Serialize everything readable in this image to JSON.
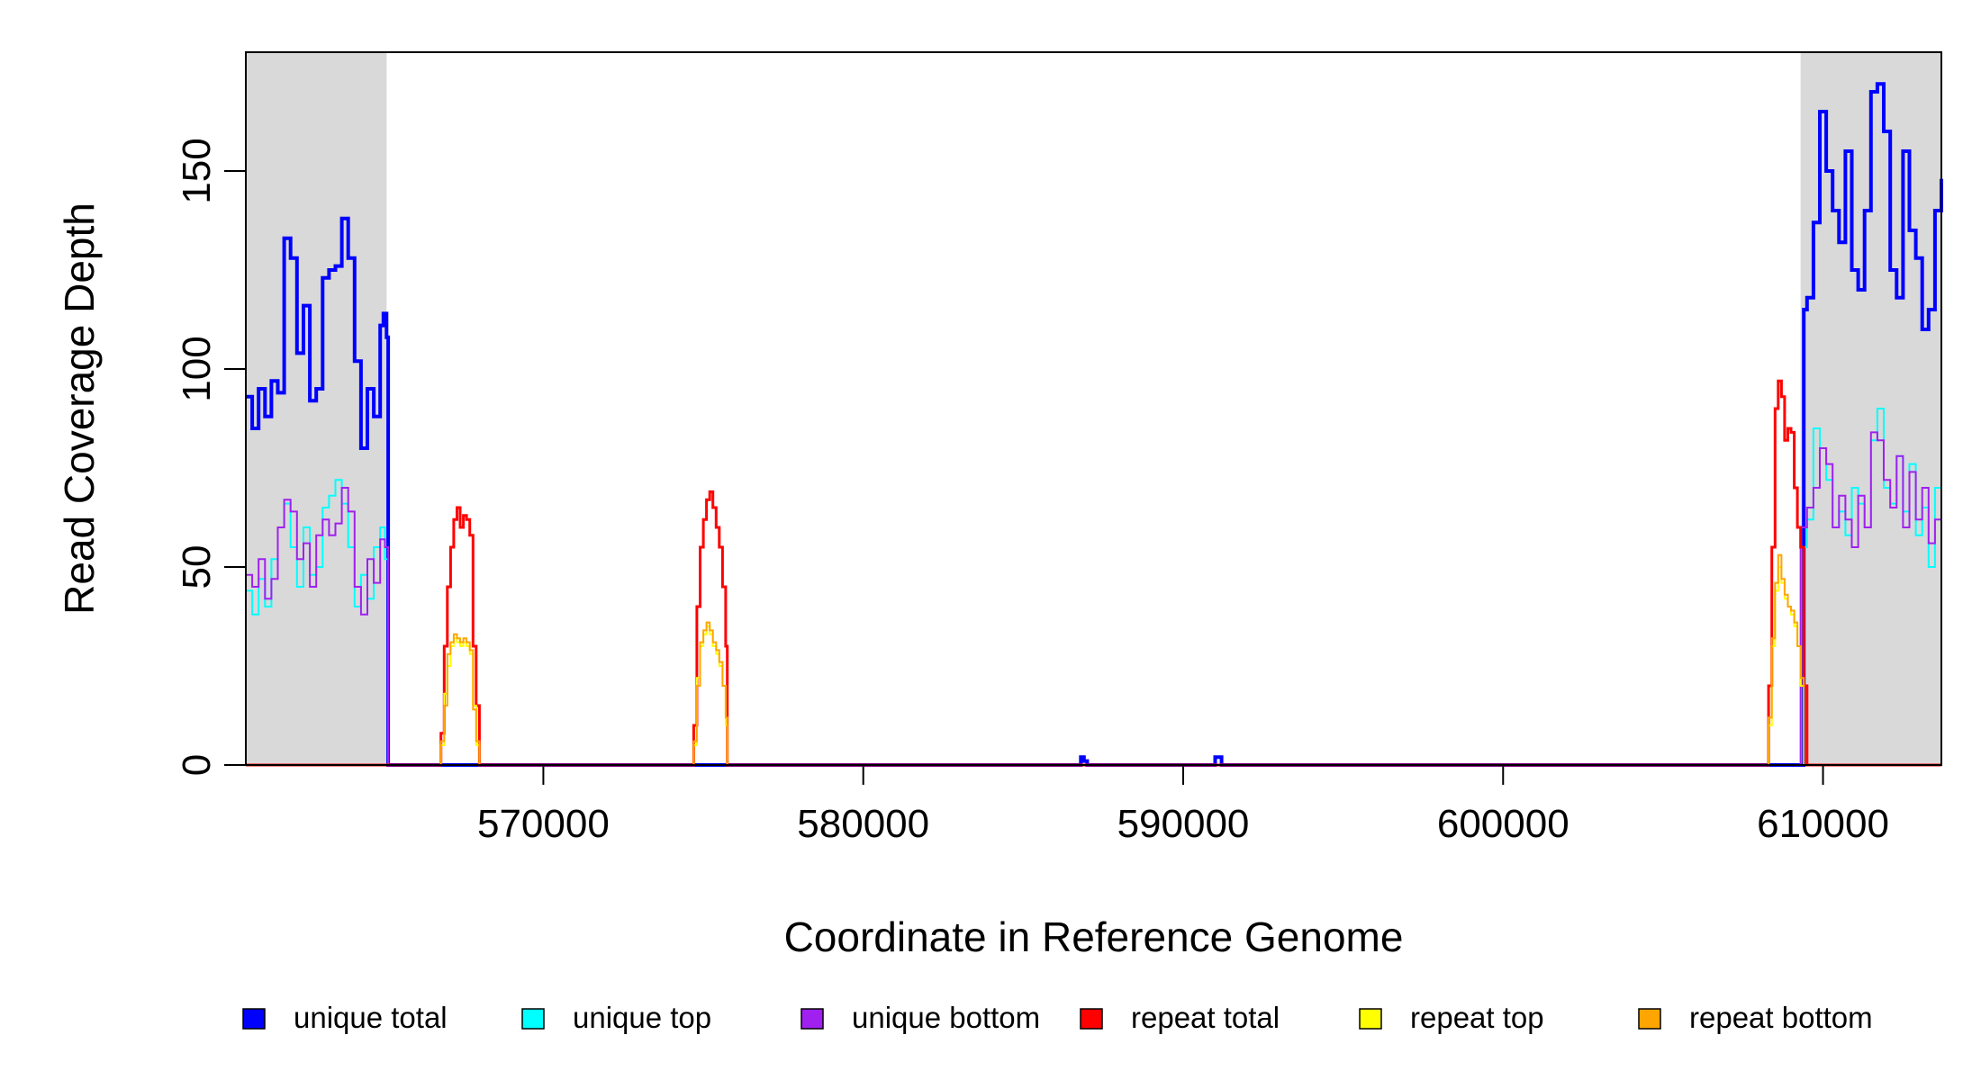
{
  "chart_data": {
    "type": "line",
    "title": "",
    "xlabel": "Coordinate in Reference Genome",
    "ylabel": "Read Coverage Depth",
    "xlim": [
      560700,
      613700
    ],
    "ylim": [
      0,
      180
    ],
    "x_ticks": [
      570000,
      580000,
      590000,
      600000,
      610000
    ],
    "x_tick_labels": [
      "570000",
      "580000",
      "590000",
      "600000",
      "610000"
    ],
    "y_ticks": [
      0,
      50,
      100,
      150
    ],
    "y_tick_labels": [
      "0",
      "50",
      "100",
      "150"
    ],
    "grid": false,
    "legend_position": "bottom",
    "shaded_regions": [
      {
        "x_start": 560700,
        "x_end": 565100,
        "color": "#d9d9d9"
      },
      {
        "x_start": 609300,
        "x_end": 613700,
        "color": "#d9d9d9"
      }
    ],
    "series": [
      {
        "name": "unique total",
        "color": "#0000ff",
        "width": 4,
        "x": [
          560700,
          560900,
          561100,
          561300,
          561500,
          561700,
          561900,
          562100,
          562300,
          562500,
          562700,
          562900,
          563100,
          563300,
          563500,
          563700,
          563900,
          564100,
          564300,
          564500,
          564700,
          564900,
          565000,
          565100,
          565150,
          586700,
          586800,
          586900,
          587000,
          587100,
          590900,
          591000,
          591100,
          591200,
          591300,
          609300,
          609400,
          609500,
          609700,
          609900,
          610100,
          610300,
          610500,
          610700,
          610900,
          611100,
          611300,
          611500,
          611700,
          611900,
          612100,
          612300,
          612500,
          612700,
          612900,
          613100,
          613300,
          613500,
          613700
        ],
        "y": [
          93,
          85,
          95,
          88,
          97,
          94,
          133,
          128,
          104,
          116,
          92,
          95,
          123,
          125,
          126,
          138,
          128,
          102,
          80,
          95,
          88,
          111,
          114,
          108,
          0,
          0,
          2,
          1,
          0,
          0,
          0,
          2,
          2,
          0,
          0,
          0,
          115,
          118,
          137,
          165,
          150,
          140,
          132,
          155,
          125,
          120,
          140,
          170,
          172,
          160,
          125,
          118,
          155,
          135,
          128,
          110,
          115,
          140,
          148
        ]
      },
      {
        "name": "unique top",
        "color": "#00ffff",
        "width": 2,
        "x": [
          560700,
          560900,
          561100,
          561300,
          561500,
          561700,
          561900,
          562100,
          562300,
          562500,
          562700,
          562900,
          563100,
          563300,
          563500,
          563700,
          563900,
          564100,
          564300,
          564500,
          564700,
          564900,
          565050,
          565150,
          609300,
          609500,
          609700,
          609900,
          610100,
          610300,
          610500,
          610700,
          610900,
          611100,
          611300,
          611500,
          611700,
          611900,
          612100,
          612300,
          612500,
          612700,
          612900,
          613100,
          613300,
          613500,
          613700
        ],
        "y": [
          44,
          38,
          47,
          40,
          52,
          60,
          66,
          55,
          45,
          60,
          48,
          50,
          65,
          68,
          72,
          66,
          55,
          40,
          48,
          42,
          55,
          60,
          52,
          0,
          55,
          62,
          85,
          80,
          72,
          60,
          64,
          58,
          70,
          66,
          60,
          82,
          90,
          70,
          66,
          78,
          64,
          76,
          58,
          65,
          50,
          70,
          80
        ]
      },
      {
        "name": "unique bottom",
        "color": "#a020f0",
        "width": 2,
        "x": [
          560700,
          560900,
          561100,
          561300,
          561500,
          561700,
          561900,
          562100,
          562300,
          562500,
          562700,
          562900,
          563100,
          563300,
          563500,
          563700,
          563900,
          564100,
          564300,
          564500,
          564700,
          564900,
          565050,
          565150,
          609300,
          609500,
          609700,
          609900,
          610100,
          610300,
          610500,
          610700,
          610900,
          611100,
          611300,
          611500,
          611700,
          611900,
          612100,
          612300,
          612500,
          612700,
          612900,
          613100,
          613300,
          613500,
          613700
        ],
        "y": [
          48,
          45,
          52,
          42,
          47,
          60,
          67,
          64,
          52,
          56,
          45,
          58,
          62,
          58,
          61,
          70,
          64,
          45,
          38,
          52,
          46,
          57,
          55,
          0,
          60,
          65,
          70,
          80,
          76,
          60,
          68,
          62,
          55,
          68,
          60,
          84,
          82,
          72,
          65,
          78,
          60,
          74,
          62,
          70,
          56,
          62,
          68
        ]
      },
      {
        "name": "repeat total",
        "color": "#ff0000",
        "width": 3,
        "x": [
          560700,
          566700,
          566800,
          566900,
          567000,
          567100,
          567200,
          567300,
          567400,
          567500,
          567600,
          567700,
          567800,
          567900,
          568000,
          568050,
          574600,
          574700,
          574800,
          574900,
          575000,
          575100,
          575200,
          575300,
          575400,
          575500,
          575600,
          575700,
          575750,
          608200,
          608300,
          608400,
          608500,
          608600,
          608700,
          608800,
          608900,
          609000,
          609100,
          609200,
          609300,
          609400,
          609500,
          613700
        ],
        "y": [
          0,
          0,
          8,
          30,
          45,
          55,
          62,
          65,
          60,
          63,
          62,
          58,
          30,
          15,
          0,
          0,
          0,
          10,
          40,
          55,
          62,
          67,
          69,
          65,
          60,
          55,
          45,
          30,
          0,
          0,
          20,
          55,
          90,
          97,
          93,
          82,
          85,
          84,
          70,
          60,
          55,
          20,
          0,
          0
        ]
      },
      {
        "name": "repeat top",
        "color": "#ffff00",
        "width": 2,
        "x": [
          560700,
          566700,
          566800,
          566900,
          567000,
          567100,
          567200,
          567300,
          567400,
          567500,
          567600,
          567700,
          567800,
          567900,
          568000,
          568050,
          574600,
          574700,
          574800,
          574900,
          575000,
          575100,
          575200,
          575300,
          575400,
          575500,
          575600,
          575700,
          575750,
          608200,
          608300,
          608400,
          608500,
          608600,
          608700,
          608800,
          608900,
          609000,
          609100,
          609200,
          609300,
          609400,
          613700
        ],
        "y": [
          0,
          0,
          5,
          18,
          25,
          30,
          32,
          31,
          30,
          31,
          30,
          28,
          15,
          5,
          0,
          0,
          0,
          5,
          22,
          30,
          33,
          35,
          33,
          30,
          28,
          25,
          20,
          10,
          0,
          0,
          10,
          30,
          44,
          50,
          46,
          42,
          40,
          38,
          35,
          30,
          20,
          0,
          0
        ]
      },
      {
        "name": "repeat bottom",
        "color": "#ffa500",
        "width": 2,
        "x": [
          560700,
          566700,
          566800,
          566900,
          567000,
          567100,
          567200,
          567300,
          567400,
          567500,
          567600,
          567700,
          567800,
          567900,
          568000,
          568050,
          574600,
          574700,
          574800,
          574900,
          575000,
          575100,
          575200,
          575300,
          575400,
          575500,
          575600,
          575700,
          575750,
          608200,
          608300,
          608400,
          608500,
          608600,
          608700,
          608800,
          608900,
          609000,
          609100,
          609200,
          609300,
          609400,
          613700
        ],
        "y": [
          0,
          0,
          6,
          15,
          28,
          31,
          33,
          32,
          31,
          32,
          31,
          29,
          14,
          6,
          0,
          0,
          0,
          6,
          20,
          31,
          34,
          36,
          34,
          31,
          29,
          26,
          20,
          12,
          0,
          0,
          12,
          32,
          46,
          53,
          47,
          43,
          40,
          39,
          36,
          30,
          22,
          0,
          0
        ]
      }
    ]
  }
}
